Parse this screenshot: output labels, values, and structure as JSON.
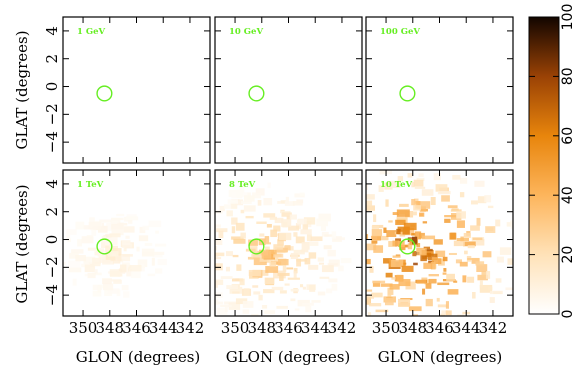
{
  "chart_data": {
    "type": "heatmap",
    "xlabel": "GLON (degrees)",
    "ylabel": "GLAT (degrees)",
    "xlim": [
      351.5,
      340.5
    ],
    "ylim": [
      -5.5,
      5
    ],
    "x_ticks": [
      350,
      348,
      346,
      344,
      342
    ],
    "y_ticks": [
      4,
      2,
      0,
      -2,
      -4
    ],
    "colorbar": {
      "range": [
        0,
        100
      ],
      "ticks": [
        0,
        20,
        40,
        60,
        80,
        100
      ]
    },
    "source_circle": {
      "glon": 348.4,
      "glat": -0.5,
      "radius_deg": 0.55,
      "color": "#66ee22"
    },
    "panels": [
      {
        "label": "1 GeV",
        "max_level": 0,
        "extent": 0
      },
      {
        "label": "10 GeV",
        "max_level": 0,
        "extent": 0
      },
      {
        "label": "100 GeV",
        "max_level": 0,
        "extent": 0
      },
      {
        "label": "1 TeV",
        "max_level": 15,
        "extent": 0.35
      },
      {
        "label": "8 TeV",
        "max_level": 45,
        "extent": 0.6
      },
      {
        "label": "10 TeV",
        "max_level": 100,
        "extent": 0.9
      }
    ]
  }
}
